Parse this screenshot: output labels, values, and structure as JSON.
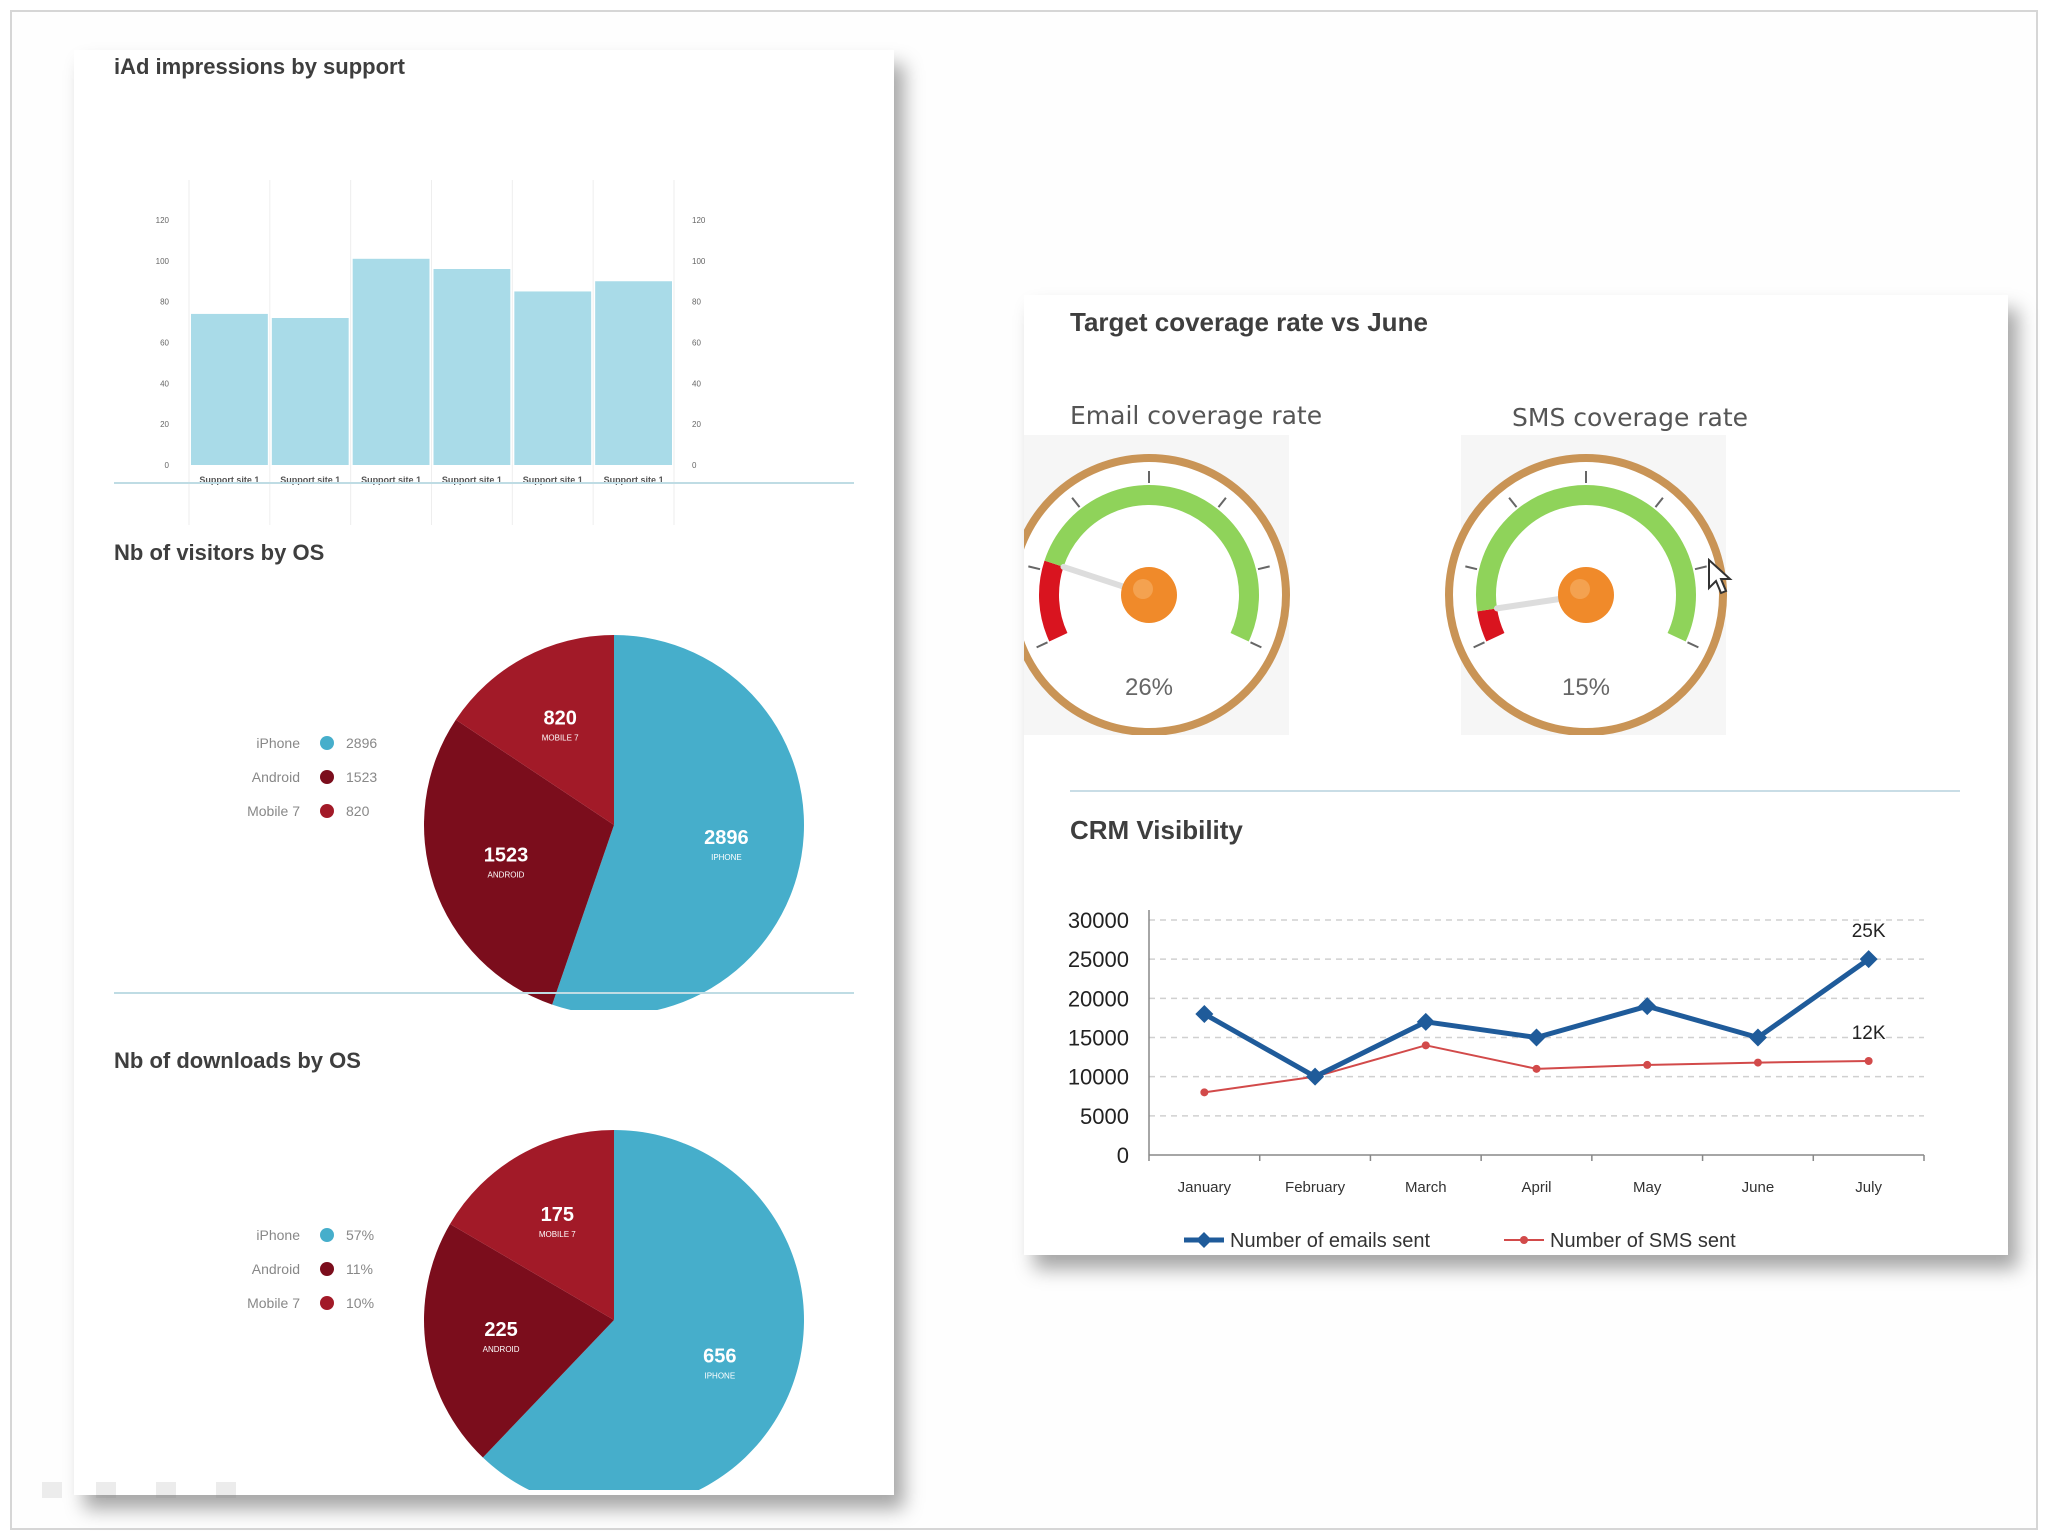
{
  "colors": {
    "bar": "#a9dbe8",
    "iphone": "#46aecb",
    "android": "#7b0d1c",
    "mobile7": "#a21a28",
    "gauge_green": "#8fd35a",
    "gauge_red": "#d9141f",
    "gauge_ring": "#c99456",
    "gauge_knob": "#f08a2a",
    "emails_line": "#1f5b9a",
    "sms_line": "#d24a4a"
  },
  "panels": {
    "iad": {
      "title": "iAd impressions by support"
    },
    "visitors": {
      "title": "Nb of visitors by OS"
    },
    "downloads": {
      "title": "Nb of downloads by OS"
    },
    "target": {
      "title": "Target coverage rate vs June"
    },
    "crm": {
      "title": "CRM Visibility"
    }
  },
  "gauges": [
    {
      "label": "Email coverage rate",
      "value_label": "26%",
      "value": 0.26
    },
    {
      "label": "SMS coverage rate",
      "value_label": "15%",
      "value": 0.15
    }
  ],
  "chart_data": [
    {
      "type": "bar",
      "title": "iAd impressions by support",
      "categories": [
        "Support site 1",
        "Support site 1",
        "Support site 1",
        "Support site 1",
        "Support site 1",
        "Support site 1"
      ],
      "values": [
        74,
        72,
        101,
        96,
        85,
        90
      ],
      "ylim": [
        0,
        120
      ],
      "yticks": [
        "0",
        "20",
        "40",
        "60",
        "80",
        "100",
        "120"
      ]
    },
    {
      "type": "pie",
      "title": "Nb of visitors by OS",
      "legend": [
        {
          "name": "iPhone",
          "value_label": "2896",
          "color_key": "iphone"
        },
        {
          "name": "Android",
          "value_label": "1523",
          "color_key": "android"
        },
        {
          "name": "Mobile 7",
          "value_label": "820",
          "color_key": "mobile7"
        }
      ],
      "slices": [
        {
          "name": "iPhone",
          "value": 2896,
          "label": "2896",
          "sublabel": "IPHONE",
          "color_key": "iphone"
        },
        {
          "name": "Android",
          "value": 1523,
          "label": "1523",
          "sublabel": "ANDROID",
          "color_key": "android"
        },
        {
          "name": "Mobile 7",
          "value": 820,
          "label": "820",
          "sublabel": "MOBILE 7",
          "color_key": "mobile7"
        }
      ]
    },
    {
      "type": "pie",
      "title": "Nb of downloads by OS",
      "legend": [
        {
          "name": "iPhone",
          "value_label": "57%",
          "color_key": "iphone"
        },
        {
          "name": "Android",
          "value_label": "11%",
          "color_key": "android"
        },
        {
          "name": "Mobile 7",
          "value_label": "10%",
          "color_key": "mobile7"
        }
      ],
      "slices": [
        {
          "name": "iPhone",
          "value": 656,
          "label": "656",
          "sublabel": "IPHONE",
          "color_key": "iphone"
        },
        {
          "name": "Android",
          "value": 225,
          "label": "225",
          "sublabel": "ANDROID",
          "color_key": "android"
        },
        {
          "name": "Mobile 7",
          "value": 175,
          "label": "175",
          "sublabel": "MOBILE 7",
          "color_key": "mobile7"
        }
      ]
    },
    {
      "type": "line",
      "title": "CRM Visibility",
      "x": [
        "January",
        "February",
        "March",
        "April",
        "May",
        "June",
        "July"
      ],
      "ylim": [
        0,
        30000
      ],
      "yticks": [
        "0",
        "5000",
        "10000",
        "15000",
        "20000",
        "25000",
        "30000"
      ],
      "grid": true,
      "legend_position": "bottom",
      "series": [
        {
          "name": "Number of emails sent",
          "values": [
            18000,
            10000,
            17000,
            15000,
            19000,
            15000,
            25000
          ],
          "end_label": "25K",
          "color_key": "emails_line"
        },
        {
          "name": "Number of SMS sent",
          "values": [
            8000,
            10000,
            14000,
            11000,
            11500,
            11800,
            12000
          ],
          "end_label": "12K",
          "color_key": "sms_line"
        }
      ]
    }
  ]
}
